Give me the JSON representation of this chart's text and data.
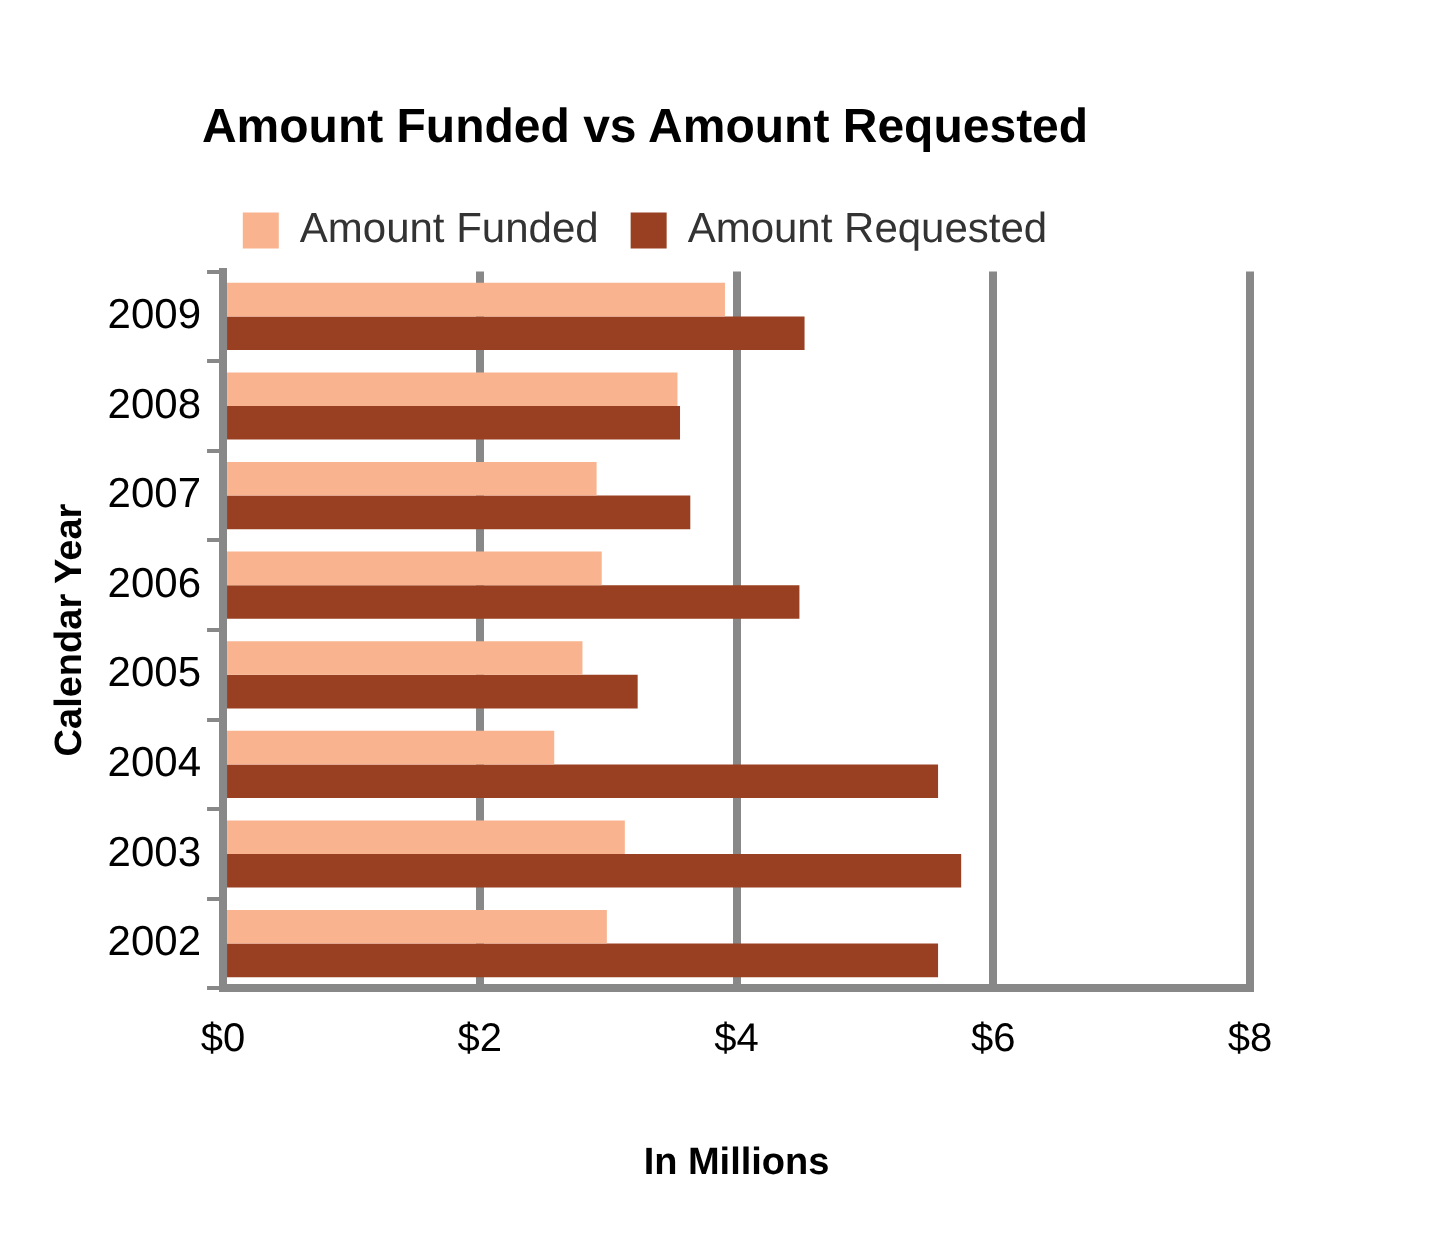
{
  "chart_data": {
    "type": "bar",
    "orientation": "horizontal",
    "title": "Amount Funded vs Amount Requested",
    "xlabel": "In Millions",
    "ylabel": "Calendar Year",
    "categories": [
      "2009",
      "2008",
      "2007",
      "2006",
      "2005",
      "2004",
      "2003",
      "2002"
    ],
    "series": [
      {
        "name": "Amount Funded",
        "color": "#f9b48f",
        "values": [
          3.91,
          3.54,
          2.91,
          2.95,
          2.8,
          2.58,
          3.13,
          2.99
        ]
      },
      {
        "name": "Amount Requested",
        "color": "#9a4022",
        "values": [
          4.53,
          3.56,
          3.64,
          4.49,
          3.23,
          5.57,
          5.75,
          5.57
        ]
      }
    ],
    "xlim": [
      0,
      8
    ],
    "xticks": [
      {
        "value": 0,
        "label": "$0"
      },
      {
        "value": 2,
        "label": "$2"
      },
      {
        "value": 4,
        "label": "$4"
      },
      {
        "value": 6,
        "label": "$6"
      },
      {
        "value": 8,
        "label": "$8"
      }
    ],
    "grid": "x",
    "legend": "top"
  }
}
